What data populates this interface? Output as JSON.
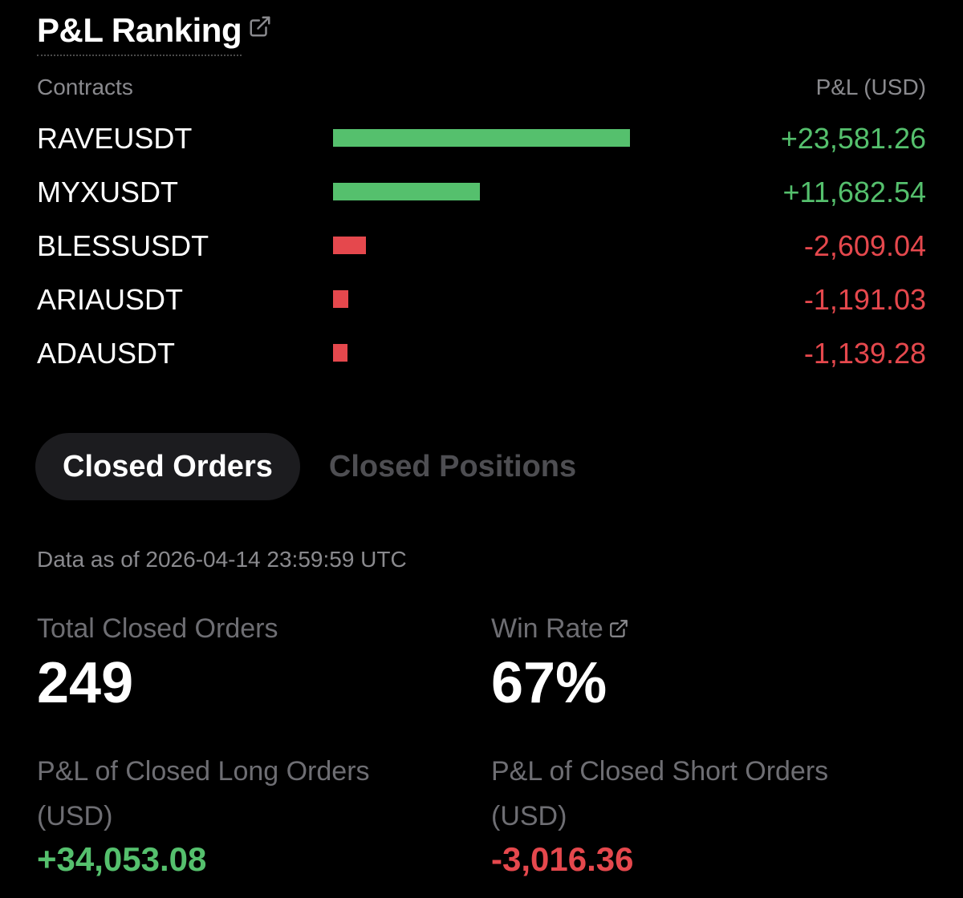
{
  "header": {
    "title": "P&L Ranking",
    "link_icon": "external-link-icon"
  },
  "ranking": {
    "col_contracts": "Contracts",
    "col_pnl": "P&L (USD)",
    "colors": {
      "positive": "#55c06d",
      "negative": "#e5484d"
    },
    "rows": [
      {
        "name": "RAVEUSDT",
        "value": "+23,581.26",
        "pnl": 23581.26
      },
      {
        "name": "MYXUSDT",
        "value": "+11,682.54",
        "pnl": 11682.54
      },
      {
        "name": "BLESSUSDT",
        "value": "-2,609.04",
        "pnl": -2609.04
      },
      {
        "name": "ARIAUSDT",
        "value": "-1,191.03",
        "pnl": -1191.03
      },
      {
        "name": "ADAUSDT",
        "value": "-1,139.28",
        "pnl": -1139.28
      }
    ]
  },
  "tabs": [
    {
      "label": "Closed Orders",
      "active": true
    },
    {
      "label": "Closed Positions",
      "active": false
    }
  ],
  "data_asof": "Data as of 2026-04-14 23:59:59 UTC",
  "stats": {
    "total_closed_orders": {
      "label": "Total Closed Orders",
      "value": "249"
    },
    "win_rate": {
      "label": "Win Rate",
      "value": "67%",
      "icon": "external-link-icon"
    },
    "long_pnl": {
      "label_line1": "P&L of Closed Long Orders",
      "label_line2": "(USD)",
      "value": "+34,053.08"
    },
    "short_pnl": {
      "label_line1": "P&L of Closed Short Orders",
      "label_line2": "(USD)",
      "value": "-3,016.36"
    }
  }
}
